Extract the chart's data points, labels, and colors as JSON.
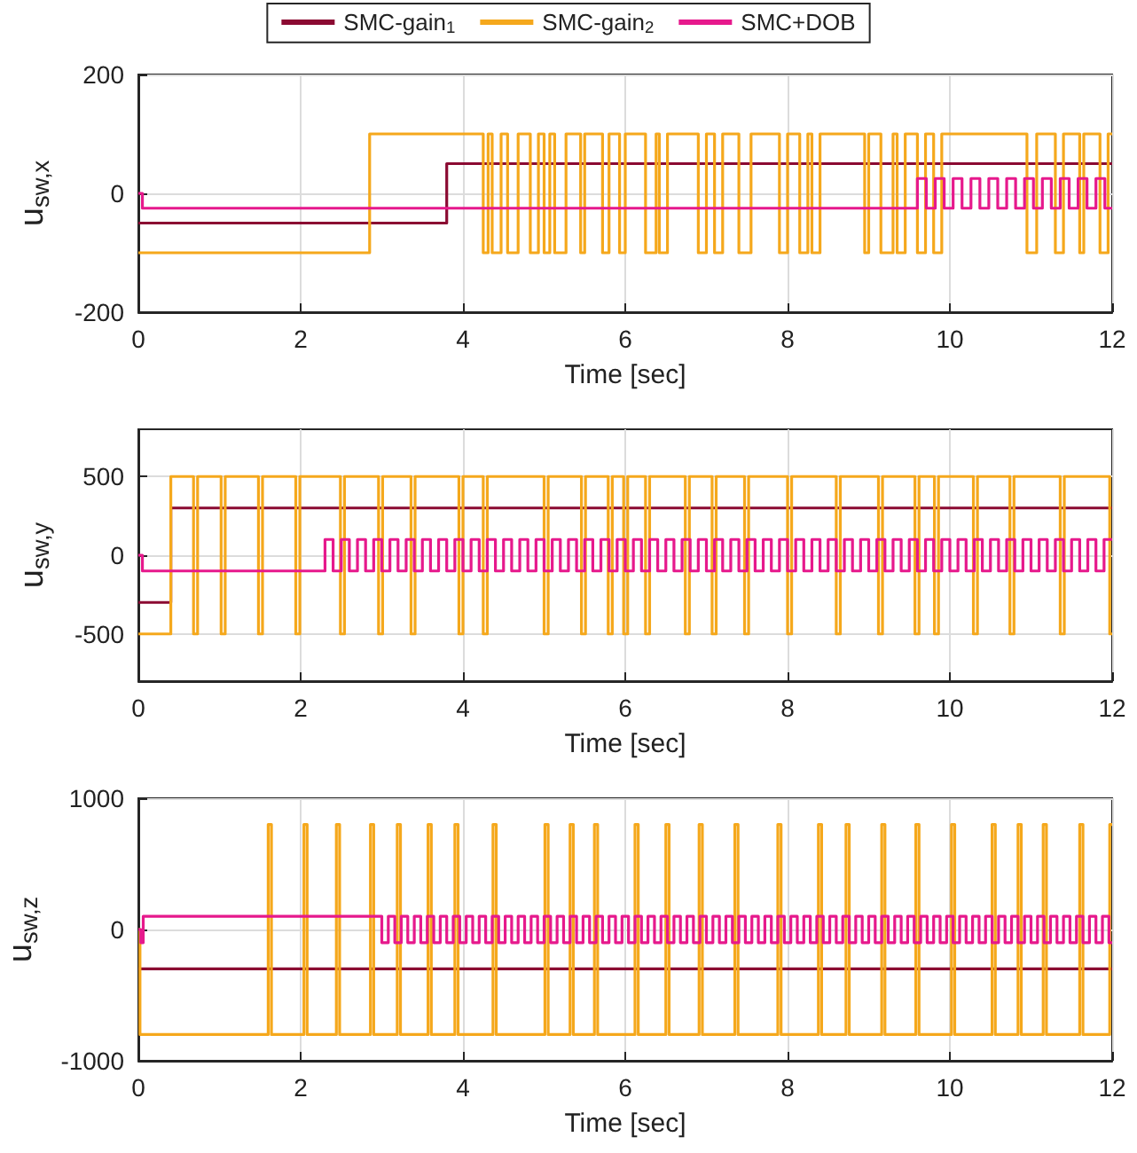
{
  "chart_data": [
    {
      "type": "step",
      "xlabel": "Time [sec]",
      "ylabel": "u$_{sw,x}$",
      "xlim": [
        0,
        12
      ],
      "xticks": [
        0,
        2,
        4,
        6,
        8,
        10,
        12
      ],
      "ylim": [
        -200,
        200
      ],
      "yticks": [
        -200,
        0,
        200
      ],
      "grid": true,
      "legend": "top",
      "series": [
        {
          "name": "SMC-gain$_{1}$",
          "color": "#8b0a32",
          "x": [
            0,
            3.8,
            12
          ],
          "values": [
            -50,
            50,
            50
          ]
        },
        {
          "name": "SMC-gain$_{2}$",
          "color": "#f5a81c",
          "x": [
            0,
            2.85,
            4.25,
            4.31,
            4.36,
            4.47,
            4.55,
            4.68,
            4.83,
            4.93,
            5.0,
            5.07,
            5.13,
            5.27,
            5.45,
            5.5,
            5.72,
            5.8,
            5.93,
            6.0,
            6.25,
            6.38,
            6.42,
            6.52,
            6.9,
            7.0,
            7.1,
            7.2,
            7.4,
            7.55,
            7.9,
            8.0,
            8.15,
            8.25,
            8.3,
            8.4,
            8.95,
            9.0,
            9.15,
            9.3,
            9.35,
            9.45,
            9.6,
            9.7,
            9.8,
            9.9,
            10.95,
            11.07,
            11.3,
            11.4,
            11.6,
            11.65,
            11.85,
            11.95,
            12
          ],
          "values": [
            -100,
            100,
            -100,
            100,
            -100,
            100,
            -100,
            100,
            -100,
            100,
            -100,
            100,
            -100,
            100,
            -100,
            100,
            -100,
            100,
            -100,
            100,
            -100,
            100,
            -100,
            100,
            -100,
            100,
            -100,
            100,
            -100,
            100,
            -100,
            100,
            -100,
            100,
            -100,
            100,
            -100,
            100,
            -100,
            100,
            -100,
            100,
            -100,
            100,
            -100,
            100,
            -100,
            100,
            -100,
            100,
            -100,
            100,
            -100,
            100,
            100
          ]
        },
        {
          "name": "SMC+DOB",
          "color": "#e6198c",
          "x": [
            0,
            0.05,
            9.6,
            9.71,
            9.82,
            9.93,
            10.04,
            10.15,
            10.26,
            10.37,
            10.48,
            10.59,
            10.7,
            10.81,
            10.92,
            11.03,
            11.14,
            11.25,
            11.36,
            11.47,
            11.58,
            11.69,
            11.8,
            11.91,
            12
          ],
          "values": [
            0,
            -25,
            25,
            -25,
            25,
            -25,
            25,
            -25,
            25,
            -25,
            25,
            -25,
            25,
            -25,
            25,
            -25,
            25,
            -25,
            25,
            -25,
            25,
            -25,
            25,
            -25,
            -25
          ]
        }
      ]
    },
    {
      "type": "step",
      "xlabel": "Time [sec]",
      "ylabel": "u$_{sw,y}$",
      "xlim": [
        0,
        12
      ],
      "xticks": [
        0,
        2,
        4,
        6,
        8,
        10,
        12
      ],
      "ylim": [
        -800,
        800
      ],
      "yticks": [
        -500,
        0,
        500
      ],
      "grid": true,
      "series": [
        {
          "color": "#8b0a32",
          "x": [
            0,
            0.4,
            12
          ],
          "values": [
            -300,
            300,
            300
          ]
        },
        {
          "color": "#f5a81c",
          "x": [
            0,
            0.4,
            0.68,
            0.73,
            1.02,
            1.07,
            1.48,
            1.53,
            1.94,
            1.99,
            2.49,
            2.54,
            2.96,
            3.01,
            3.36,
            3.41,
            3.95,
            4.0,
            4.25,
            4.3,
            5.0,
            5.05,
            5.46,
            5.51,
            5.79,
            5.84,
            5.98,
            6.03,
            6.25,
            6.3,
            6.74,
            6.79,
            7.07,
            7.12,
            7.47,
            7.52,
            8.0,
            8.05,
            8.6,
            8.65,
            9.12,
            9.17,
            9.57,
            9.62,
            9.81,
            9.86,
            10.29,
            10.34,
            10.74,
            10.79,
            11.36,
            11.41,
            11.97,
            12
          ],
          "values": [
            -500,
            500,
            -500,
            500,
            -500,
            500,
            -500,
            500,
            -500,
            500,
            -500,
            500,
            -500,
            500,
            -500,
            500,
            -500,
            500,
            -500,
            500,
            -500,
            500,
            -500,
            500,
            -500,
            500,
            -500,
            500,
            -500,
            500,
            -500,
            500,
            -500,
            500,
            -500,
            500,
            -500,
            500,
            -500,
            500,
            -500,
            500,
            -500,
            500,
            -500,
            500,
            -500,
            500,
            -500,
            500,
            -500,
            500,
            -500,
            -500
          ]
        },
        {
          "color": "#e6198c",
          "x": [
            0,
            0.05,
            2.3,
            2.4,
            2.5,
            2.6,
            2.7,
            2.8,
            2.9,
            3.0,
            3.1,
            3.2,
            3.3,
            3.4,
            3.5,
            3.6,
            3.7,
            3.8,
            3.9,
            4.0,
            4.1,
            4.2,
            4.3,
            4.4,
            4.5,
            4.6,
            4.7,
            4.8,
            4.9,
            5.0,
            5.1,
            5.2,
            5.3,
            5.4,
            5.5,
            5.6,
            5.7,
            5.8,
            5.9,
            6.0,
            6.1,
            6.2,
            6.3,
            6.4,
            6.5,
            6.6,
            6.7,
            6.8,
            6.9,
            7.0,
            7.1,
            7.2,
            7.3,
            7.4,
            7.5,
            7.6,
            7.7,
            7.8,
            7.9,
            8.0,
            8.1,
            8.2,
            8.3,
            8.4,
            8.5,
            8.6,
            8.7,
            8.8,
            8.9,
            9.0,
            9.1,
            9.2,
            9.3,
            9.4,
            9.5,
            9.6,
            9.7,
            9.8,
            9.9,
            10.0,
            10.1,
            10.2,
            10.3,
            10.4,
            10.5,
            10.6,
            10.7,
            10.8,
            10.9,
            11.0,
            11.1,
            11.2,
            11.3,
            11.4,
            11.5,
            11.6,
            11.7,
            11.8,
            11.9,
            12
          ],
          "values": [
            0,
            -100,
            100,
            -100,
            100,
            -100,
            100,
            -100,
            100,
            -100,
            100,
            -100,
            100,
            -100,
            100,
            -100,
            100,
            -100,
            100,
            -100,
            100,
            -100,
            100,
            -100,
            100,
            -100,
            100,
            -100,
            100,
            -100,
            100,
            -100,
            100,
            -100,
            100,
            -100,
            100,
            -100,
            100,
            -100,
            100,
            -100,
            100,
            -100,
            100,
            -100,
            100,
            -100,
            100,
            -100,
            100,
            -100,
            100,
            -100,
            100,
            -100,
            100,
            -100,
            100,
            -100,
            100,
            -100,
            100,
            -100,
            100,
            -100,
            100,
            -100,
            100,
            -100,
            100,
            -100,
            100,
            -100,
            100,
            -100,
            100,
            -100,
            100,
            -100,
            100,
            -100,
            100,
            -100,
            100,
            -100,
            100,
            -100,
            100,
            -100,
            100,
            -100,
            100,
            -100,
            100,
            -100,
            100,
            -100,
            100,
            100
          ]
        }
      ]
    },
    {
      "type": "step",
      "xlabel": "Time [sec]",
      "ylabel": "u$_{sw,z}$",
      "xlim": [
        0,
        12
      ],
      "xticks": [
        0,
        2,
        4,
        6,
        8,
        10,
        12
      ],
      "ylim": [
        -1000,
        1000
      ],
      "yticks": [
        -1000,
        0,
        1000
      ],
      "grid": true,
      "series": [
        {
          "color": "#8b0a32",
          "x": [
            0,
            12
          ],
          "values": [
            -300,
            -300
          ]
        },
        {
          "color": "#f5a81c",
          "x": [
            0,
            0.02,
            1.6,
            1.64,
            2.04,
            2.08,
            2.44,
            2.48,
            2.86,
            2.9,
            3.19,
            3.23,
            3.57,
            3.61,
            3.9,
            3.94,
            4.37,
            4.41,
            5.01,
            5.05,
            5.32,
            5.36,
            5.62,
            5.66,
            6.12,
            6.16,
            6.5,
            6.54,
            6.91,
            6.95,
            7.35,
            7.39,
            7.88,
            7.92,
            8.38,
            8.42,
            8.72,
            8.76,
            9.16,
            9.2,
            9.58,
            9.62,
            10.02,
            10.06,
            10.52,
            10.56,
            10.84,
            10.88,
            11.15,
            11.19,
            11.6,
            11.64,
            11.97,
            12
          ],
          "values": [
            0,
            -800,
            800,
            -800,
            800,
            -800,
            800,
            -800,
            800,
            -800,
            800,
            -800,
            800,
            -800,
            800,
            -800,
            800,
            -800,
            800,
            -800,
            800,
            -800,
            800,
            -800,
            800,
            -800,
            800,
            -800,
            800,
            -800,
            800,
            -800,
            800,
            -800,
            800,
            -800,
            800,
            -800,
            800,
            -800,
            800,
            -800,
            800,
            -800,
            800,
            -800,
            800,
            -800,
            800,
            -800,
            800,
            -800,
            800,
            800
          ]
        },
        {
          "color": "#e6198c",
          "x": [
            0,
            0.03,
            0.06,
            3.0,
            3.08,
            3.16,
            3.24,
            3.32,
            3.4,
            3.48,
            3.56,
            3.64,
            3.72,
            3.8,
            3.88,
            3.96,
            4.04,
            4.12,
            4.2,
            4.28,
            4.36,
            4.44,
            4.52,
            4.6,
            4.68,
            4.76,
            4.84,
            4.92,
            5.0,
            5.08,
            5.16,
            5.24,
            5.32,
            5.4,
            5.48,
            5.56,
            5.64,
            5.72,
            5.8,
            5.88,
            5.96,
            6.04,
            6.12,
            6.2,
            6.28,
            6.36,
            6.44,
            6.52,
            6.6,
            6.68,
            6.76,
            6.84,
            6.92,
            7.0,
            7.08,
            7.16,
            7.24,
            7.32,
            7.4,
            7.48,
            7.56,
            7.64,
            7.72,
            7.8,
            7.88,
            7.96,
            8.04,
            8.12,
            8.2,
            8.28,
            8.36,
            8.44,
            8.52,
            8.6,
            8.68,
            8.76,
            8.84,
            8.92,
            9.0,
            9.08,
            9.16,
            9.24,
            9.32,
            9.4,
            9.48,
            9.56,
            9.64,
            9.72,
            9.8,
            9.88,
            9.96,
            10.04,
            10.12,
            10.2,
            10.28,
            10.36,
            10.44,
            10.52,
            10.6,
            10.68,
            10.76,
            10.84,
            10.92,
            11.0,
            11.08,
            11.16,
            11.24,
            11.32,
            11.4,
            11.48,
            11.56,
            11.64,
            11.72,
            11.8,
            11.88,
            11.96,
            12
          ],
          "values": [
            0,
            -100,
            100,
            -100,
            100,
            -100,
            100,
            -100,
            100,
            -100,
            100,
            -100,
            100,
            -100,
            100,
            -100,
            100,
            -100,
            100,
            -100,
            100,
            -100,
            100,
            -100,
            100,
            -100,
            100,
            -100,
            100,
            -100,
            100,
            -100,
            100,
            -100,
            100,
            -100,
            100,
            -100,
            100,
            -100,
            100,
            -100,
            100,
            -100,
            100,
            -100,
            100,
            -100,
            100,
            -100,
            100,
            -100,
            100,
            -100,
            100,
            -100,
            100,
            -100,
            100,
            -100,
            100,
            -100,
            100,
            -100,
            100,
            -100,
            100,
            -100,
            100,
            -100,
            100,
            -100,
            100,
            -100,
            100,
            -100,
            100,
            -100,
            100,
            -100,
            100,
            -100,
            100,
            -100,
            100,
            -100,
            100,
            -100,
            100,
            -100,
            100,
            -100,
            100,
            -100,
            100,
            -100,
            100,
            -100,
            100,
            -100,
            100,
            -100,
            100,
            -100,
            100,
            -100,
            100,
            -100,
            100,
            -100,
            100,
            -100,
            100,
            -100,
            100,
            -100,
            -100
          ]
        }
      ]
    }
  ]
}
